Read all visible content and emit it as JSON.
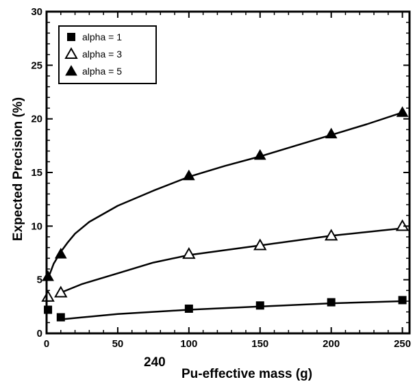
{
  "chart_data": {
    "type": "scatter",
    "xlabel_prefix": "240",
    "xlabel": "Pu-effective mass (g)",
    "ylabel": "Expected Precision (%)",
    "xlim": [
      0,
      255
    ],
    "ylim": [
      0,
      30
    ],
    "x_ticks": [
      0,
      50,
      100,
      150,
      200,
      250
    ],
    "y_ticks": [
      0,
      5,
      10,
      15,
      20,
      25,
      30
    ],
    "grid": false,
    "legend_position": "top-left",
    "series": [
      {
        "name": "alpha = 1",
        "marker": "filled-square",
        "x": [
          1,
          10,
          100,
          150,
          200,
          250
        ],
        "y": [
          2.2,
          1.5,
          2.3,
          2.6,
          2.9,
          3.1
        ],
        "curve_x": [
          10,
          50,
          100,
          150,
          200,
          250
        ],
        "curve_y": [
          1.3,
          1.8,
          2.2,
          2.5,
          2.8,
          3.0
        ]
      },
      {
        "name": "alpha = 3",
        "marker": "open-triangle",
        "x": [
          1,
          10,
          100,
          150,
          200,
          250
        ],
        "y": [
          3.4,
          3.8,
          7.4,
          8.2,
          9.1,
          10.0
        ],
        "curve_x": [
          10,
          25,
          50,
          75,
          100,
          150,
          200,
          250
        ],
        "curve_y": [
          3.8,
          4.6,
          5.6,
          6.6,
          7.3,
          8.2,
          9.1,
          9.8
        ]
      },
      {
        "name": "alpha = 5",
        "marker": "filled-triangle",
        "x": [
          1,
          10,
          100,
          150,
          200,
          250
        ],
        "y": [
          5.3,
          7.4,
          14.7,
          16.6,
          18.6,
          20.6
        ],
        "curve_x": [
          1,
          5,
          10,
          15,
          20,
          30,
          50,
          75,
          100,
          125,
          150,
          175,
          200,
          225,
          250
        ],
        "curve_y": [
          5.1,
          6.5,
          7.6,
          8.5,
          9.3,
          10.4,
          11.9,
          13.3,
          14.6,
          15.6,
          16.5,
          17.5,
          18.5,
          19.5,
          20.6
        ]
      }
    ]
  }
}
